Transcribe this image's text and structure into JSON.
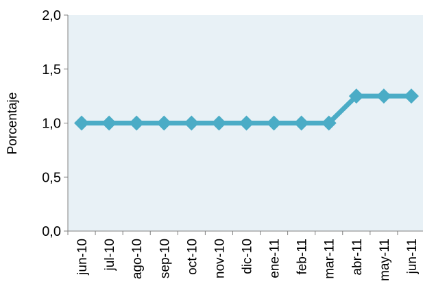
{
  "chart_data": {
    "type": "line",
    "title": "",
    "xlabel": "",
    "ylabel": "Porcentaje",
    "categories": [
      "jun-10",
      "jul-10",
      "ago-10",
      "sep-10",
      "oct-10",
      "nov-10",
      "dic-10",
      "ene-11",
      "feb-11",
      "mar-11",
      "abr-11",
      "may-11",
      "jun-11"
    ],
    "series": [
      {
        "values": [
          1.0,
          1.0,
          1.0,
          1.0,
          1.0,
          1.0,
          1.0,
          1.0,
          1.0,
          1.0,
          1.25,
          1.25,
          1.25
        ]
      }
    ],
    "ylim": [
      0,
      2.0
    ],
    "yticks": [
      0,
      0.5,
      1.0,
      1.5,
      2.0
    ],
    "ytick_labels": [
      "0,0",
      "0,5",
      "1,0",
      "1,5",
      "2,0"
    ],
    "grid": false,
    "legend": "none",
    "colors": {
      "plot_background": "#e8f1f6",
      "line": "#4bacc6",
      "marker": "#4bacc6",
      "axis": "#7f7f7f"
    }
  }
}
